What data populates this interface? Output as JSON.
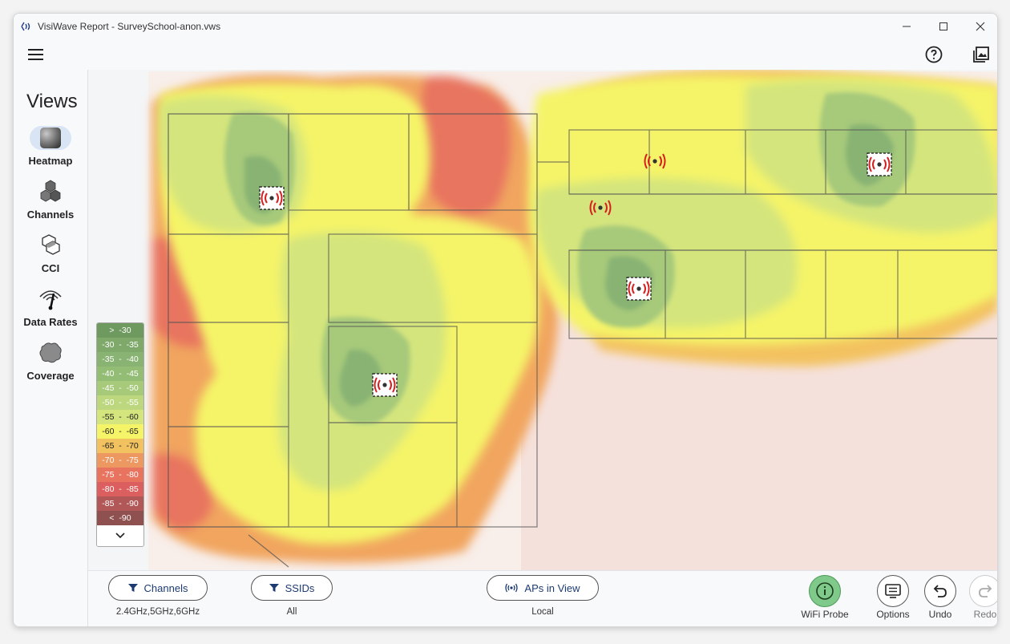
{
  "window": {
    "title": "VisiWave Report - SurveySchool-anon.vws"
  },
  "sidebar": {
    "title": "Views",
    "items": [
      {
        "label": "Heatmap",
        "icon": "heatmap-icon",
        "active": true
      },
      {
        "label": "Channels",
        "icon": "channels-icon",
        "active": false
      },
      {
        "label": "CCI",
        "icon": "cci-icon",
        "active": false
      },
      {
        "label": "Data Rates",
        "icon": "data-rates-icon",
        "active": false
      },
      {
        "label": "Coverage",
        "icon": "coverage-icon",
        "active": false
      }
    ]
  },
  "legend": {
    "rows": [
      {
        "label": ">  -30",
        "color": "#6f9a5f"
      },
      {
        "label": "-30  -  -35",
        "color": "#7ea96a"
      },
      {
        "label": "-35  -  -40",
        "color": "#88b373"
      },
      {
        "label": "-40  -  -45",
        "color": "#93bc75"
      },
      {
        "label": "-45  -  -50",
        "color": "#a6c97a"
      },
      {
        "label": "-50  -  -55",
        "color": "#bcd77e"
      },
      {
        "label": "-55  -  -60",
        "color": "#d4e57d"
      },
      {
        "label": "-60  -  -65",
        "color": "#f5f468"
      },
      {
        "label": "-65  -  -70",
        "color": "#f3c260"
      },
      {
        "label": "-70  -  -75",
        "color": "#ed9860"
      },
      {
        "label": "-75  -  -80",
        "color": "#e8745f"
      },
      {
        "label": "-80  -  -85",
        "color": "#dc5f5f"
      },
      {
        "label": "-85  -  -90",
        "color": "#b25757"
      },
      {
        "label": "<  -90",
        "color": "#8f5050"
      }
    ]
  },
  "bottom": {
    "channels": {
      "label": "Channels",
      "value": "2.4GHz,5GHz,6GHz"
    },
    "ssids": {
      "label": "SSIDs",
      "value": "All"
    },
    "aps": {
      "label": "APs in View",
      "value": "Local"
    },
    "probe_label": "WiFi Probe",
    "options_label": "Options",
    "undo_label": "Undo",
    "redo_label": "Redo"
  },
  "colors": {
    "accent": "#1d3b73",
    "ap_marker": "#d62020",
    "probe": "#7fc98a"
  }
}
